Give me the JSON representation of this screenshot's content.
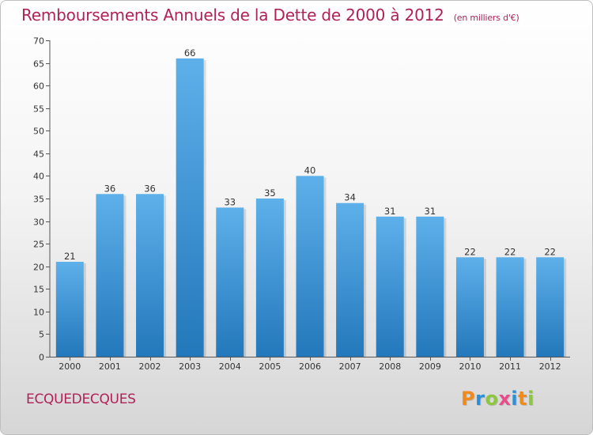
{
  "title": "Remboursements Annuels de la Dette de 2000 à 2012",
  "unit_note": "(en milliers d'€)",
  "commune": "ECQUEDECQUES",
  "logo": {
    "letters": [
      "P",
      "r",
      "o",
      "x",
      "i",
      "t",
      "i"
    ],
    "colors": [
      "#f08a1c",
      "#2a8fd6",
      "#8dc63f",
      "#e84c8b",
      "#2a8fd6",
      "#f08a1c",
      "#8dc63f"
    ]
  },
  "colors": {
    "bar_top": "#5eb0ea",
    "bar_bottom": "#2378bb",
    "title": "#b02257"
  },
  "chart_data": {
    "type": "bar",
    "title": "Remboursements Annuels de la Dette de 2000 à 2012",
    "xlabel": "",
    "ylabel": "",
    "categories": [
      "2000",
      "2001",
      "2002",
      "2003",
      "2004",
      "2005",
      "2006",
      "2007",
      "2008",
      "2009",
      "2010",
      "2011",
      "2012"
    ],
    "values": [
      21,
      36,
      36,
      66,
      33,
      35,
      40,
      34,
      31,
      31,
      22,
      22,
      22
    ],
    "ylim": [
      0,
      70
    ],
    "yticks": [
      0,
      5,
      10,
      15,
      20,
      25,
      30,
      35,
      40,
      45,
      50,
      55,
      60,
      65,
      70
    ],
    "grid": false
  }
}
